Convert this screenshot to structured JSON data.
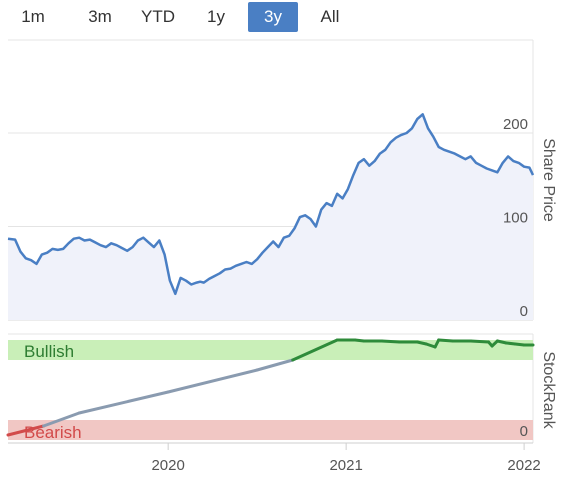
{
  "range_selector": {
    "buttons": [
      {
        "label": "1m",
        "active": false
      },
      {
        "label": "3m",
        "active": false
      },
      {
        "label": "YTD",
        "active": false
      },
      {
        "label": "1y",
        "active": false
      },
      {
        "label": "3y",
        "active": true
      },
      {
        "label": "All",
        "active": false
      }
    ],
    "active_color": "#4a7fc4"
  },
  "chart_data": [
    {
      "type": "area",
      "title": "",
      "ylabel": "Share Price",
      "ylim": [
        0,
        240
      ],
      "yticks": [
        0,
        100,
        200
      ],
      "xlim": [
        2019.1,
        2022.05
      ],
      "grid": true,
      "line_color": "#4a7fc4",
      "fill_color": "#f0f2fa",
      "series": [
        {
          "x": [
            2019.1,
            2019.14,
            2019.17,
            2019.2,
            2019.23,
            2019.26,
            2019.29,
            2019.32,
            2019.35,
            2019.38,
            2019.41,
            2019.44,
            2019.47,
            2019.5,
            2019.53,
            2019.56,
            2019.59,
            2019.62,
            2019.65,
            2019.68,
            2019.71,
            2019.74,
            2019.77,
            2019.8,
            2019.83,
            2019.86,
            2019.89,
            2019.92,
            2019.95,
            2019.98,
            2020.01,
            2020.04,
            2020.07,
            2020.1,
            2020.13,
            2020.16,
            2020.18,
            2020.2,
            2020.23,
            2020.26,
            2020.29,
            2020.32,
            2020.35,
            2020.38,
            2020.41,
            2020.44,
            2020.47,
            2020.5,
            2020.53,
            2020.56,
            2020.59,
            2020.62,
            2020.65,
            2020.68,
            2020.71,
            2020.74,
            2020.77,
            2020.8,
            2020.83,
            2020.86,
            2020.89,
            2020.92,
            2020.95,
            2020.98,
            2021.01,
            2021.04,
            2021.07,
            2021.1,
            2021.13,
            2021.16,
            2021.19,
            2021.22,
            2021.25,
            2021.28,
            2021.31,
            2021.34,
            2021.37,
            2021.4,
            2021.43,
            2021.46,
            2021.49,
            2021.52,
            2021.55,
            2021.58,
            2021.61,
            2021.64,
            2021.67,
            2021.7,
            2021.73,
            2021.76,
            2021.79,
            2021.82,
            2021.85,
            2021.88,
            2021.91,
            2021.94,
            2021.97,
            2022.0,
            2022.03,
            2022.05
          ],
          "y": [
            87,
            86,
            73,
            66,
            64,
            60,
            70,
            72,
            76,
            75,
            76,
            82,
            87,
            88,
            85,
            86,
            83,
            80,
            78,
            82,
            80,
            77,
            74,
            78,
            85,
            88,
            83,
            78,
            85,
            70,
            42,
            28,
            45,
            42,
            38,
            40,
            41,
            40,
            44,
            47,
            50,
            54,
            55,
            58,
            60,
            62,
            60,
            65,
            72,
            78,
            84,
            78,
            88,
            90,
            98,
            110,
            112,
            108,
            100,
            118,
            125,
            122,
            135,
            130,
            140,
            155,
            168,
            172,
            165,
            170,
            178,
            182,
            190,
            195,
            198,
            200,
            205,
            215,
            220,
            205,
            196,
            185,
            182,
            180,
            178,
            175,
            172,
            175,
            168,
            165,
            162,
            160,
            158,
            168,
            175,
            170,
            168,
            164,
            163,
            155
          ]
        }
      ]
    },
    {
      "type": "line",
      "ylabel": "StockRank",
      "ylim": [
        0,
        100
      ],
      "yticks": [
        0
      ],
      "xticks": [
        2020,
        2021,
        2022
      ],
      "xlim": [
        2019.1,
        2022.05
      ],
      "bands": [
        {
          "label": "Bullish",
          "from": 80,
          "to": 100,
          "fill": "#c9efb8",
          "text_color": "#2e7d32"
        },
        {
          "label": "Bearish",
          "from": 0,
          "to": 20,
          "fill": "#f1c7c4",
          "text_color": "#d24a4a"
        }
      ],
      "series": [
        {
          "x": [
            2019.1,
            2019.3,
            2019.5,
            2020.0,
            2020.5,
            2020.7,
            2020.95,
            2021.05,
            2021.1,
            2021.2,
            2021.3,
            2021.4,
            2021.45,
            2021.5,
            2021.52,
            2021.6,
            2021.7,
            2021.8,
            2021.82,
            2021.85,
            2021.9,
            2021.95,
            2022.0,
            2022.05
          ],
          "y": [
            5,
            14,
            27,
            48,
            70,
            80,
            100,
            100,
            99,
            99,
            98,
            98,
            96,
            93,
            100,
            99,
            99,
            98,
            94,
            99,
            97,
            96,
            95,
            95
          ]
        }
      ]
    }
  ]
}
